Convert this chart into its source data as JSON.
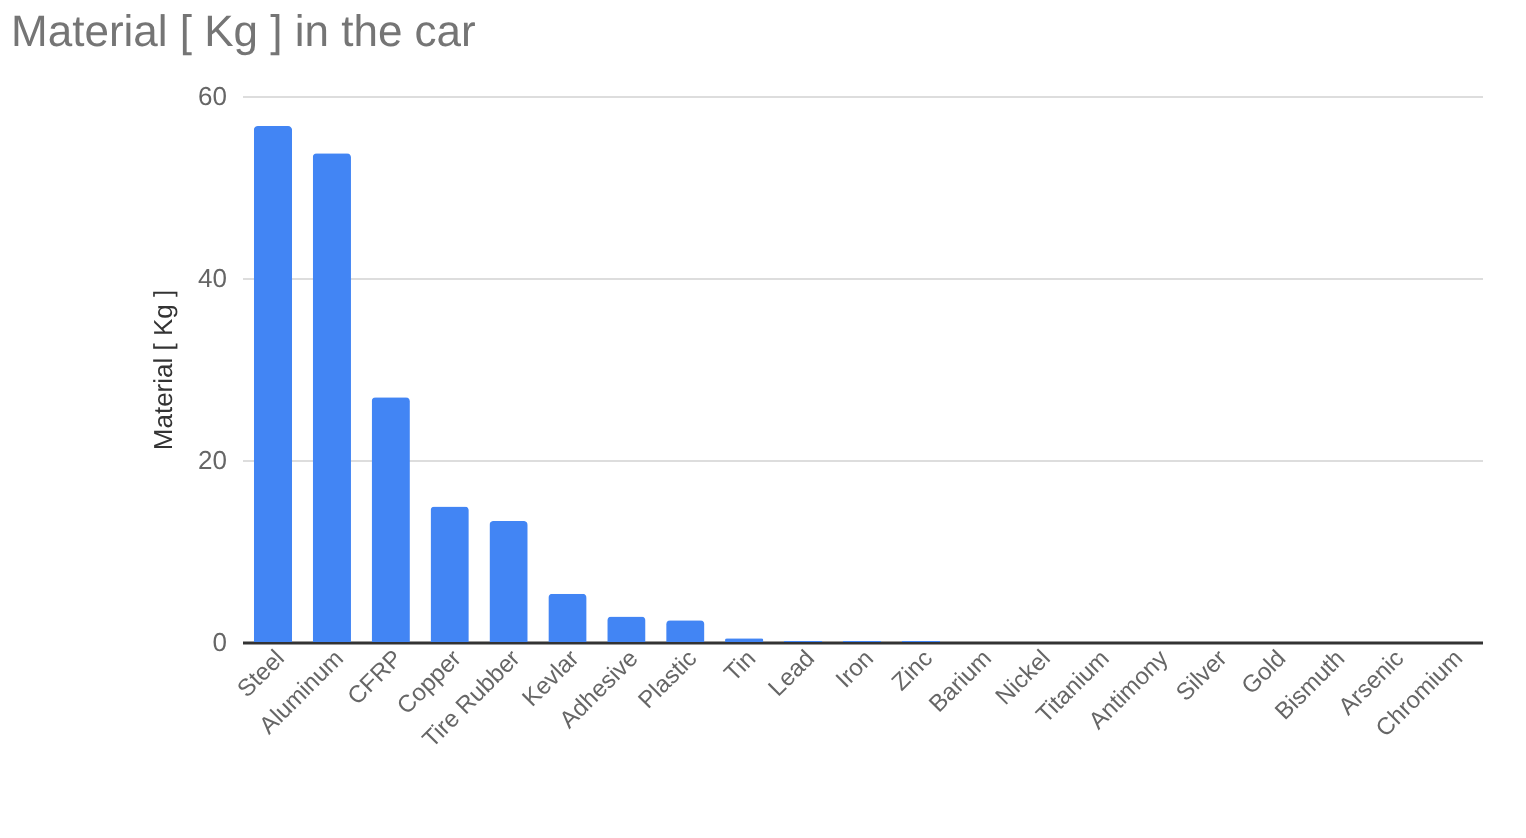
{
  "chart_data": {
    "type": "bar",
    "title": "Material [ Kg ] in the car",
    "ylabel": "Material [ Kg ]",
    "categories": [
      "Steel",
      "Aluminum",
      "CFRP",
      "Copper",
      "Tire Rubber",
      "Kevlar",
      "Adhesive",
      "Plastic",
      "Tin",
      "Lead",
      "Iron",
      "Zinc",
      "Barium",
      "Nickel",
      "Titanium",
      "Antimony",
      "Silver",
      "Gold",
      "Bismuth",
      "Arsenic",
      "Chromium"
    ],
    "values": [
      56.7,
      53.7,
      26.9,
      14.9,
      13.3,
      5.3,
      2.8,
      2.4,
      0.4,
      0.1,
      0.1,
      0.1,
      0,
      0,
      0,
      0,
      0,
      0,
      0,
      0,
      0
    ],
    "color": "#4285f4",
    "ylim": [
      0,
      60
    ],
    "yticks": [
      0,
      20,
      40,
      60
    ],
    "grid": "y"
  }
}
